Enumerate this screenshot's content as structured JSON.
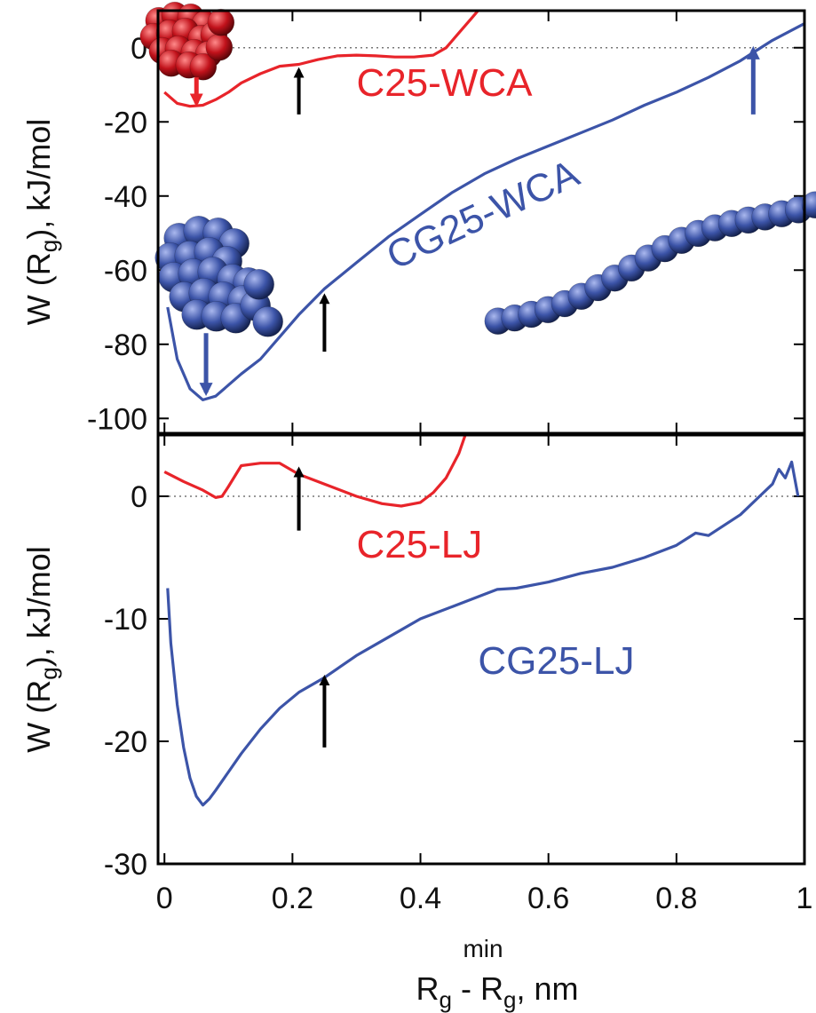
{
  "chart_data": [
    {
      "panel": "top",
      "type": "line",
      "xlabel": "R_g - R_g^min, nm",
      "ylabel": "W (R_g), kJ/mol",
      "xlim": [
        -0.01,
        1.0
      ],
      "ylim": [
        -104,
        10
      ],
      "yticks": [
        0,
        -20,
        -40,
        -60,
        -80,
        -100
      ],
      "ytick_labels": [
        "0",
        "-20",
        "-40",
        "-60",
        "-80",
        "-100"
      ],
      "zero_line": "dotted",
      "colors": {
        "red": "#e8242a",
        "blue": "#3c54a8",
        "arrow": "#000000"
      },
      "series": [
        {
          "name": "C25-WCA",
          "color": "#e8242a",
          "x": [
            0.0,
            0.02,
            0.04,
            0.06,
            0.08,
            0.1,
            0.12,
            0.15,
            0.18,
            0.21,
            0.24,
            0.27,
            0.3,
            0.33,
            0.36,
            0.39,
            0.42,
            0.44,
            0.46,
            0.48,
            0.49
          ],
          "y": [
            -12.0,
            -15.0,
            -15.8,
            -15.5,
            -14.0,
            -12.0,
            -9.5,
            -7.0,
            -5.0,
            -4.5,
            -3.2,
            -2.2,
            -2.0,
            -2.2,
            -2.5,
            -2.5,
            -2.0,
            0.0,
            4.0,
            8.0,
            10.0
          ]
        },
        {
          "name": "CG25-WCA",
          "color": "#3c54a8",
          "x": [
            0.005,
            0.02,
            0.04,
            0.06,
            0.08,
            0.1,
            0.12,
            0.15,
            0.18,
            0.21,
            0.25,
            0.3,
            0.35,
            0.4,
            0.45,
            0.5,
            0.55,
            0.6,
            0.65,
            0.7,
            0.75,
            0.8,
            0.85,
            0.9,
            0.95,
            1.0
          ],
          "y": [
            -70.0,
            -84.0,
            -92.0,
            -95.0,
            -94.0,
            -91.0,
            -88.0,
            -84.0,
            -78.0,
            -72.0,
            -65.0,
            -58.0,
            -51.0,
            -45.0,
            -39.0,
            -34.0,
            -30.0,
            -26.5,
            -23.0,
            -19.5,
            -15.5,
            -12.0,
            -8.0,
            -3.5,
            2.0,
            6.5
          ]
        }
      ],
      "arrows": [
        {
          "x": 0.21,
          "color": "#000000",
          "from_y": -18,
          "to_y": -6
        },
        {
          "x": 0.92,
          "color": "#3c54a8",
          "from_y": -18,
          "to_y": -0.5
        },
        {
          "x": 0.25,
          "color": "#000000",
          "from_y": -82,
          "to_y": -67
        },
        {
          "x": 0.065,
          "color": "#3c54a8",
          "from_y": -77,
          "to_y": -93
        },
        {
          "x": 0.05,
          "color": "#e8242a",
          "from_y": -8,
          "to_y": -15
        }
      ],
      "labels": [
        {
          "text": "C25-WCA",
          "x": 0.3,
          "y": -13,
          "color": "#e8242a"
        },
        {
          "text": "CG25-WCA",
          "x": 0.36,
          "y": -60,
          "color": "#3c54a8",
          "rotate": -25
        }
      ],
      "molecules": [
        {
          "color": "red",
          "shape": "compact",
          "x": 0.03,
          "y": 3
        },
        {
          "color": "blue",
          "shape": "compact",
          "x": 0.07,
          "y": -60
        },
        {
          "color": "blue",
          "shape": "extended",
          "x": 0.75,
          "y": -45
        }
      ]
    },
    {
      "panel": "bottom",
      "type": "line",
      "xlabel": "R_g - R_g^min, nm",
      "ylabel": "W (R_g), kJ/mol",
      "xlim": [
        -0.01,
        1.0
      ],
      "ylim": [
        -30,
        5
      ],
      "yticks": [
        0,
        -10,
        -20,
        -30
      ],
      "ytick_labels": [
        "0",
        "-10",
        "-20",
        "-30"
      ],
      "xticks": [
        0,
        0.2,
        0.4,
        0.6,
        0.8,
        1
      ],
      "xtick_labels": [
        "0",
        "0.2",
        "0.4",
        "0.6",
        "0.8",
        "1"
      ],
      "zero_line": "dotted",
      "series": [
        {
          "name": "C25-LJ",
          "color": "#e8242a",
          "x": [
            0.0,
            0.03,
            0.06,
            0.08,
            0.09,
            0.1,
            0.12,
            0.15,
            0.18,
            0.21,
            0.25,
            0.3,
            0.34,
            0.37,
            0.4,
            0.42,
            0.44,
            0.46,
            0.47
          ],
          "y": [
            2.0,
            1.2,
            0.5,
            -0.1,
            0.0,
            0.8,
            2.5,
            2.7,
            2.7,
            1.8,
            1.0,
            0.0,
            -0.6,
            -0.8,
            -0.5,
            0.3,
            1.5,
            3.5,
            5.0
          ]
        },
        {
          "name": "CG25-LJ",
          "color": "#3c54a8",
          "x": [
            0.005,
            0.01,
            0.02,
            0.03,
            0.04,
            0.05,
            0.06,
            0.07,
            0.08,
            0.1,
            0.12,
            0.15,
            0.18,
            0.21,
            0.25,
            0.3,
            0.35,
            0.4,
            0.45,
            0.5,
            0.52,
            0.55,
            0.6,
            0.65,
            0.7,
            0.75,
            0.8,
            0.83,
            0.85,
            0.9,
            0.93,
            0.95,
            0.96,
            0.97,
            0.98,
            0.99
          ],
          "y": [
            -7.5,
            -12.0,
            -17.0,
            -20.5,
            -23.0,
            -24.5,
            -25.2,
            -24.7,
            -24.0,
            -22.5,
            -21.0,
            -19.0,
            -17.3,
            -16.0,
            -14.8,
            -13.0,
            -11.5,
            -10.0,
            -9.0,
            -8.0,
            -7.6,
            -7.5,
            -7.0,
            -6.3,
            -5.8,
            -5.0,
            -4.0,
            -3.0,
            -3.2,
            -1.5,
            0.0,
            1.0,
            2.2,
            1.5,
            2.8,
            0.0
          ]
        }
      ],
      "arrows": [
        {
          "x": 0.21,
          "color": "#000000",
          "from_y": -2.8,
          "to_y": 2.2
        },
        {
          "x": 0.25,
          "color": "#000000",
          "from_y": -20.5,
          "to_y": -14.8
        }
      ],
      "labels": [
        {
          "text": "C25-LJ",
          "x": 0.3,
          "y": -5.0,
          "color": "#e8242a"
        },
        {
          "text": "CG25-LJ",
          "x": 0.49,
          "y": -14.5,
          "color": "#3c54a8"
        }
      ]
    }
  ]
}
